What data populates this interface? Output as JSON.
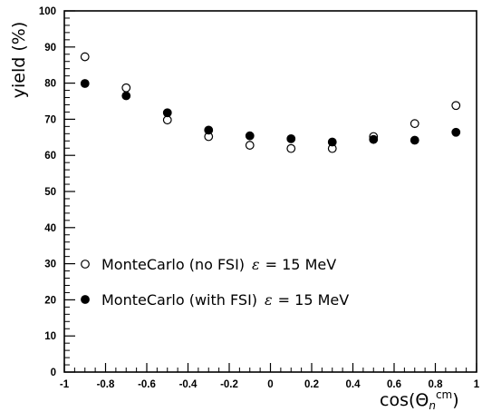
{
  "chart_data": {
    "type": "scatter",
    "title": "",
    "xlabel": "cos(Θ",
    "xlabel_sub": "n",
    "xlabel_sup": "cm",
    "xlabel_close": ")",
    "ylabel": "yield (%)",
    "xlim": [
      -1,
      1
    ],
    "ylim": [
      0,
      100
    ],
    "grid": false,
    "legend_placement": "bottom-left",
    "x_ticks": [
      "-1",
      "-0.8",
      "-0.6",
      "-0.4",
      "-0.2",
      "0",
      "0.2",
      "0.4",
      "0.6",
      "0.8",
      "1"
    ],
    "y_ticks": [
      "0",
      "10",
      "20",
      "30",
      "40",
      "50",
      "60",
      "70",
      "80",
      "90",
      "100"
    ],
    "series": [
      {
        "name": "MonteCarlo (no FSI)",
        "name_epsilon": "ε",
        "name_value": "= 15 MeV",
        "marker": "open-circle",
        "x": [
          -0.9,
          -0.7,
          -0.5,
          -0.3,
          -0.1,
          0.1,
          0.3,
          0.5,
          0.7,
          0.9
        ],
        "y": [
          87.3,
          78.7,
          69.8,
          65.2,
          62.8,
          61.9,
          61.9,
          65.2,
          68.8,
          73.8
        ]
      },
      {
        "name": "MonteCarlo (with FSI)",
        "name_epsilon": "ε",
        "name_value": "= 15 MeV",
        "marker": "filled-circle",
        "x": [
          -0.9,
          -0.7,
          -0.5,
          -0.3,
          -0.1,
          0.1,
          0.3,
          0.5,
          0.7,
          0.9
        ],
        "y": [
          79.9,
          76.5,
          71.8,
          67.0,
          65.4,
          64.6,
          63.7,
          64.4,
          64.2,
          66.4
        ]
      }
    ]
  }
}
